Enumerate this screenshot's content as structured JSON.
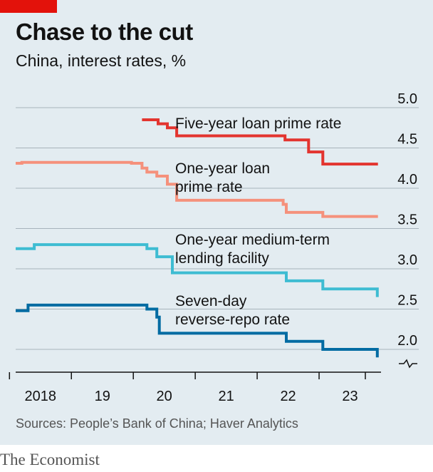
{
  "title": "Chase to the cut",
  "subtitle": "China, interest rates, %",
  "source": "Sources: People’s Bank of China; Haver Analytics",
  "brand": "The Economist",
  "chart_data": {
    "type": "line",
    "title": "Chase to the cut",
    "subtitle": "China, interest rates, %",
    "xlim": [
      2017.6,
      2023.5
    ],
    "ylim": [
      2.0,
      5.0
    ],
    "y_ticks": [
      "5.0",
      "4.5",
      "4.0",
      "3.5",
      "3.0",
      "2.5",
      "2.0"
    ],
    "y_tick_values": [
      5.0,
      4.5,
      4.0,
      3.5,
      3.0,
      2.5,
      2.0
    ],
    "x_tick_labels": [
      "2018",
      "19",
      "20",
      "21",
      "22",
      "23"
    ],
    "x_tick_positions": [
      2018,
      2019,
      2020,
      2021,
      2022,
      2023
    ],
    "x_boundaries": [
      2018.0,
      2019.0,
      2020.0,
      2021.0,
      2022.0,
      2023.0
    ],
    "grid": true,
    "broken_axis": true,
    "series": [
      {
        "name": "Five-year loan prime rate",
        "label_lines": [
          "Five-year loan prime rate"
        ],
        "color": "#e3342f",
        "points": [
          [
            2019.64,
            4.85
          ],
          [
            2019.9,
            4.85
          ],
          [
            2019.9,
            4.8
          ],
          [
            2020.05,
            4.8
          ],
          [
            2020.05,
            4.75
          ],
          [
            2020.2,
            4.75
          ],
          [
            2020.2,
            4.65
          ],
          [
            2021.95,
            4.65
          ],
          [
            2021.95,
            4.6
          ],
          [
            2022.33,
            4.6
          ],
          [
            2022.33,
            4.45
          ],
          [
            2022.56,
            4.45
          ],
          [
            2022.56,
            4.3
          ],
          [
            2023.45,
            4.3
          ]
        ]
      },
      {
        "name": "One-year loan prime rate",
        "label_lines": [
          "One-year loan",
          "prime rate"
        ],
        "color": "#f5917c",
        "points": [
          [
            2017.6,
            4.31
          ],
          [
            2017.7,
            4.31
          ],
          [
            2017.7,
            4.32
          ],
          [
            2019.47,
            4.32
          ],
          [
            2019.47,
            4.31
          ],
          [
            2019.64,
            4.31
          ],
          [
            2019.64,
            4.25
          ],
          [
            2019.72,
            4.25
          ],
          [
            2019.72,
            4.2
          ],
          [
            2019.88,
            4.2
          ],
          [
            2019.88,
            4.15
          ],
          [
            2020.05,
            4.15
          ],
          [
            2020.05,
            4.05
          ],
          [
            2020.2,
            4.05
          ],
          [
            2020.2,
            3.85
          ],
          [
            2021.92,
            3.85
          ],
          [
            2021.92,
            3.8
          ],
          [
            2021.97,
            3.8
          ],
          [
            2021.97,
            3.7
          ],
          [
            2022.56,
            3.7
          ],
          [
            2022.56,
            3.65
          ],
          [
            2023.45,
            3.65
          ]
        ]
      },
      {
        "name": "One-year medium-term lending facility",
        "label_lines": [
          "One-year medium-term",
          "lending facility"
        ],
        "color": "#3ebcd2",
        "points": [
          [
            2017.6,
            3.25
          ],
          [
            2017.9,
            3.25
          ],
          [
            2017.9,
            3.3
          ],
          [
            2019.72,
            3.3
          ],
          [
            2019.72,
            3.25
          ],
          [
            2019.88,
            3.25
          ],
          [
            2019.88,
            3.15
          ],
          [
            2020.13,
            3.15
          ],
          [
            2020.13,
            2.95
          ],
          [
            2021.97,
            2.95
          ],
          [
            2021.97,
            2.85
          ],
          [
            2022.56,
            2.85
          ],
          [
            2022.56,
            2.75
          ],
          [
            2023.44,
            2.75
          ],
          [
            2023.44,
            2.65
          ]
        ]
      },
      {
        "name": "Seven-day reverse-repo rate",
        "label_lines": [
          "Seven-day",
          "reverse-repo rate"
        ],
        "color": "#006ba2",
        "points": [
          [
            2017.6,
            2.48
          ],
          [
            2017.8,
            2.48
          ],
          [
            2017.8,
            2.55
          ],
          [
            2019.72,
            2.55
          ],
          [
            2019.72,
            2.5
          ],
          [
            2019.88,
            2.5
          ],
          [
            2019.88,
            2.4
          ],
          [
            2019.92,
            2.4
          ],
          [
            2019.92,
            2.2
          ],
          [
            2021.97,
            2.2
          ],
          [
            2021.97,
            2.1
          ],
          [
            2022.56,
            2.1
          ],
          [
            2022.56,
            2.0
          ],
          [
            2023.44,
            2.0
          ],
          [
            2023.44,
            1.9
          ]
        ]
      }
    ]
  }
}
